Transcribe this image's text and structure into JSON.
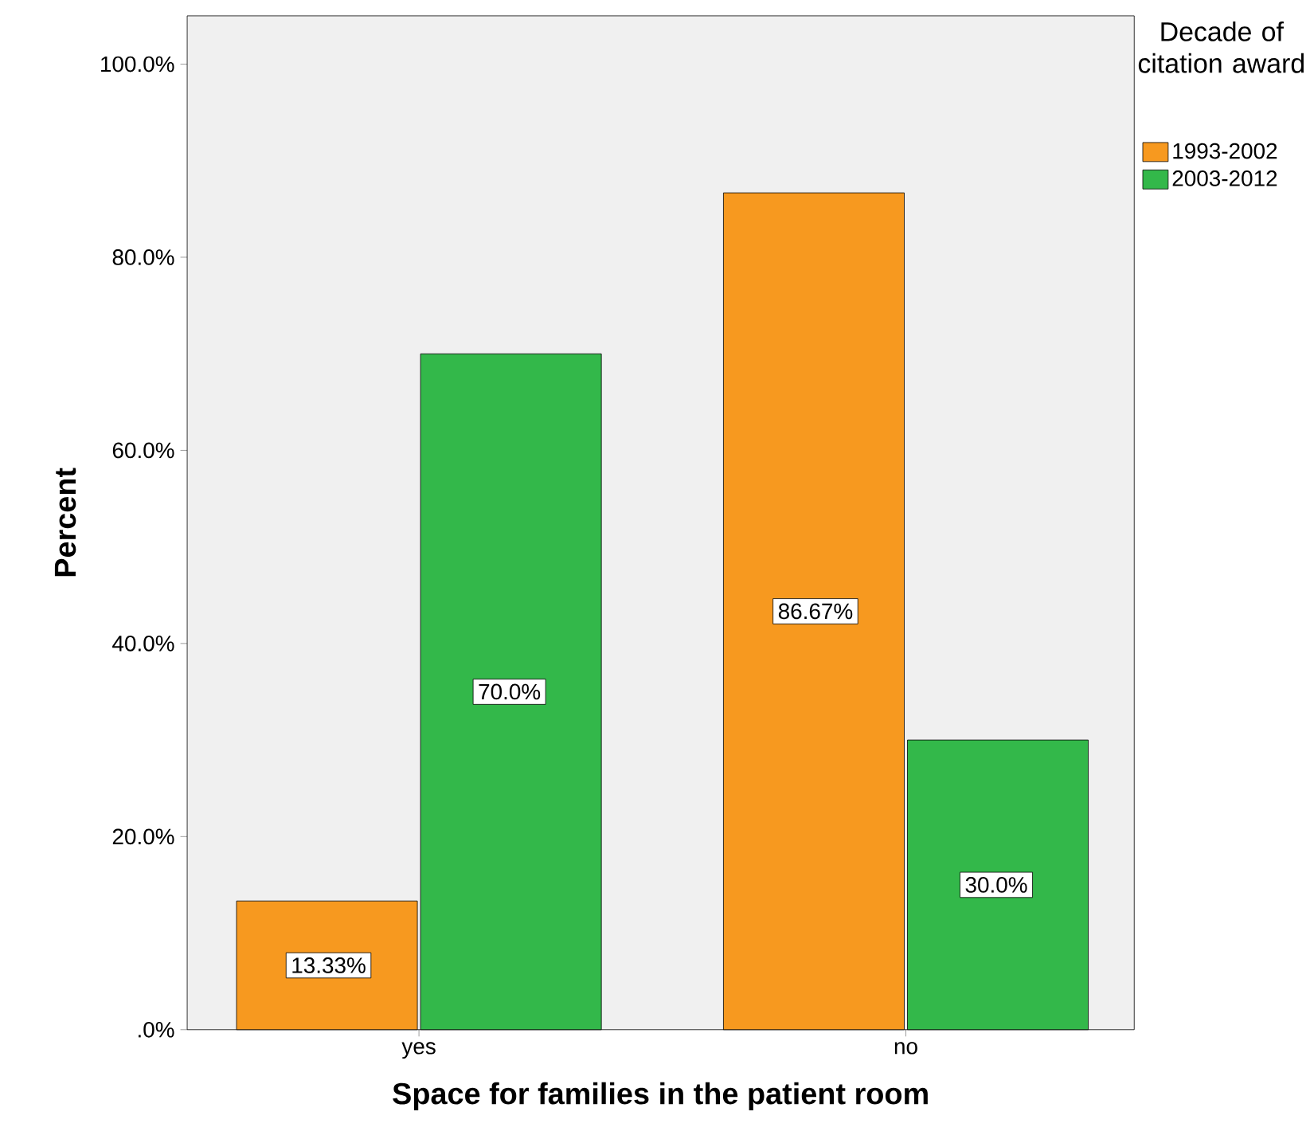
{
  "chart_data": {
    "type": "bar",
    "xlabel": "Space for families in the patient room",
    "ylabel": "Percent",
    "legend_title": "Decade of citation award",
    "categories": [
      "yes",
      "no"
    ],
    "series": [
      {
        "name": "1993-2002",
        "color": "#f7991f",
        "values": [
          13.33,
          86.67
        ],
        "value_labels": [
          "13.33%",
          "86.67%"
        ]
      },
      {
        "name": "2003-2012",
        "color": "#33b84a",
        "values": [
          70.0,
          30.0
        ],
        "value_labels": [
          "70.0%",
          "30.0%"
        ]
      }
    ],
    "ylim": [
      0,
      105
    ],
    "yticks": [
      {
        "value": 0,
        "label": ".0%"
      },
      {
        "value": 20,
        "label": "20.0%"
      },
      {
        "value": 40,
        "label": "40.0%"
      },
      {
        "value": 60,
        "label": "60.0%"
      },
      {
        "value": 80,
        "label": "80.0%"
      },
      {
        "value": 100,
        "label": "100.0%"
      }
    ],
    "legend": "top right",
    "grid": false
  }
}
